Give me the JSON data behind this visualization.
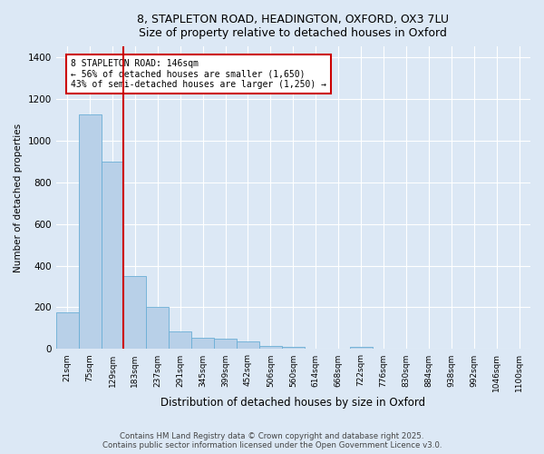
{
  "title_line1": "8, STAPLETON ROAD, HEADINGTON, OXFORD, OX3 7LU",
  "title_line2": "Size of property relative to detached houses in Oxford",
  "xlabel": "Distribution of detached houses by size in Oxford",
  "ylabel": "Number of detached properties",
  "bar_color": "#b8d0e8",
  "bar_edge_color": "#6aaed6",
  "background_color": "#dce8f5",
  "grid_color": "#ffffff",
  "annotation_text": "8 STAPLETON ROAD: 146sqm\n← 56% of detached houses are smaller (1,650)\n43% of semi-detached houses are larger (1,250) →",
  "annotation_box_color": "#cc0000",
  "vline_x": 2.5,
  "vline_color": "#cc0000",
  "footer_line1": "Contains HM Land Registry data © Crown copyright and database right 2025.",
  "footer_line2": "Contains public sector information licensed under the Open Government Licence v3.0.",
  "categories": [
    "21sqm",
    "75sqm",
    "129sqm",
    "183sqm",
    "237sqm",
    "291sqm",
    "345sqm",
    "399sqm",
    "452sqm",
    "506sqm",
    "560sqm",
    "614sqm",
    "668sqm",
    "722sqm",
    "776sqm",
    "830sqm",
    "884sqm",
    "938sqm",
    "992sqm",
    "1046sqm",
    "1100sqm"
  ],
  "values": [
    175,
    1125,
    900,
    350,
    200,
    85,
    55,
    50,
    35,
    15,
    10,
    2,
    2,
    10,
    2,
    2,
    2,
    2,
    2,
    2,
    2
  ],
  "ylim": [
    0,
    1450
  ],
  "yticks": [
    0,
    200,
    400,
    600,
    800,
    1000,
    1200,
    1400
  ]
}
